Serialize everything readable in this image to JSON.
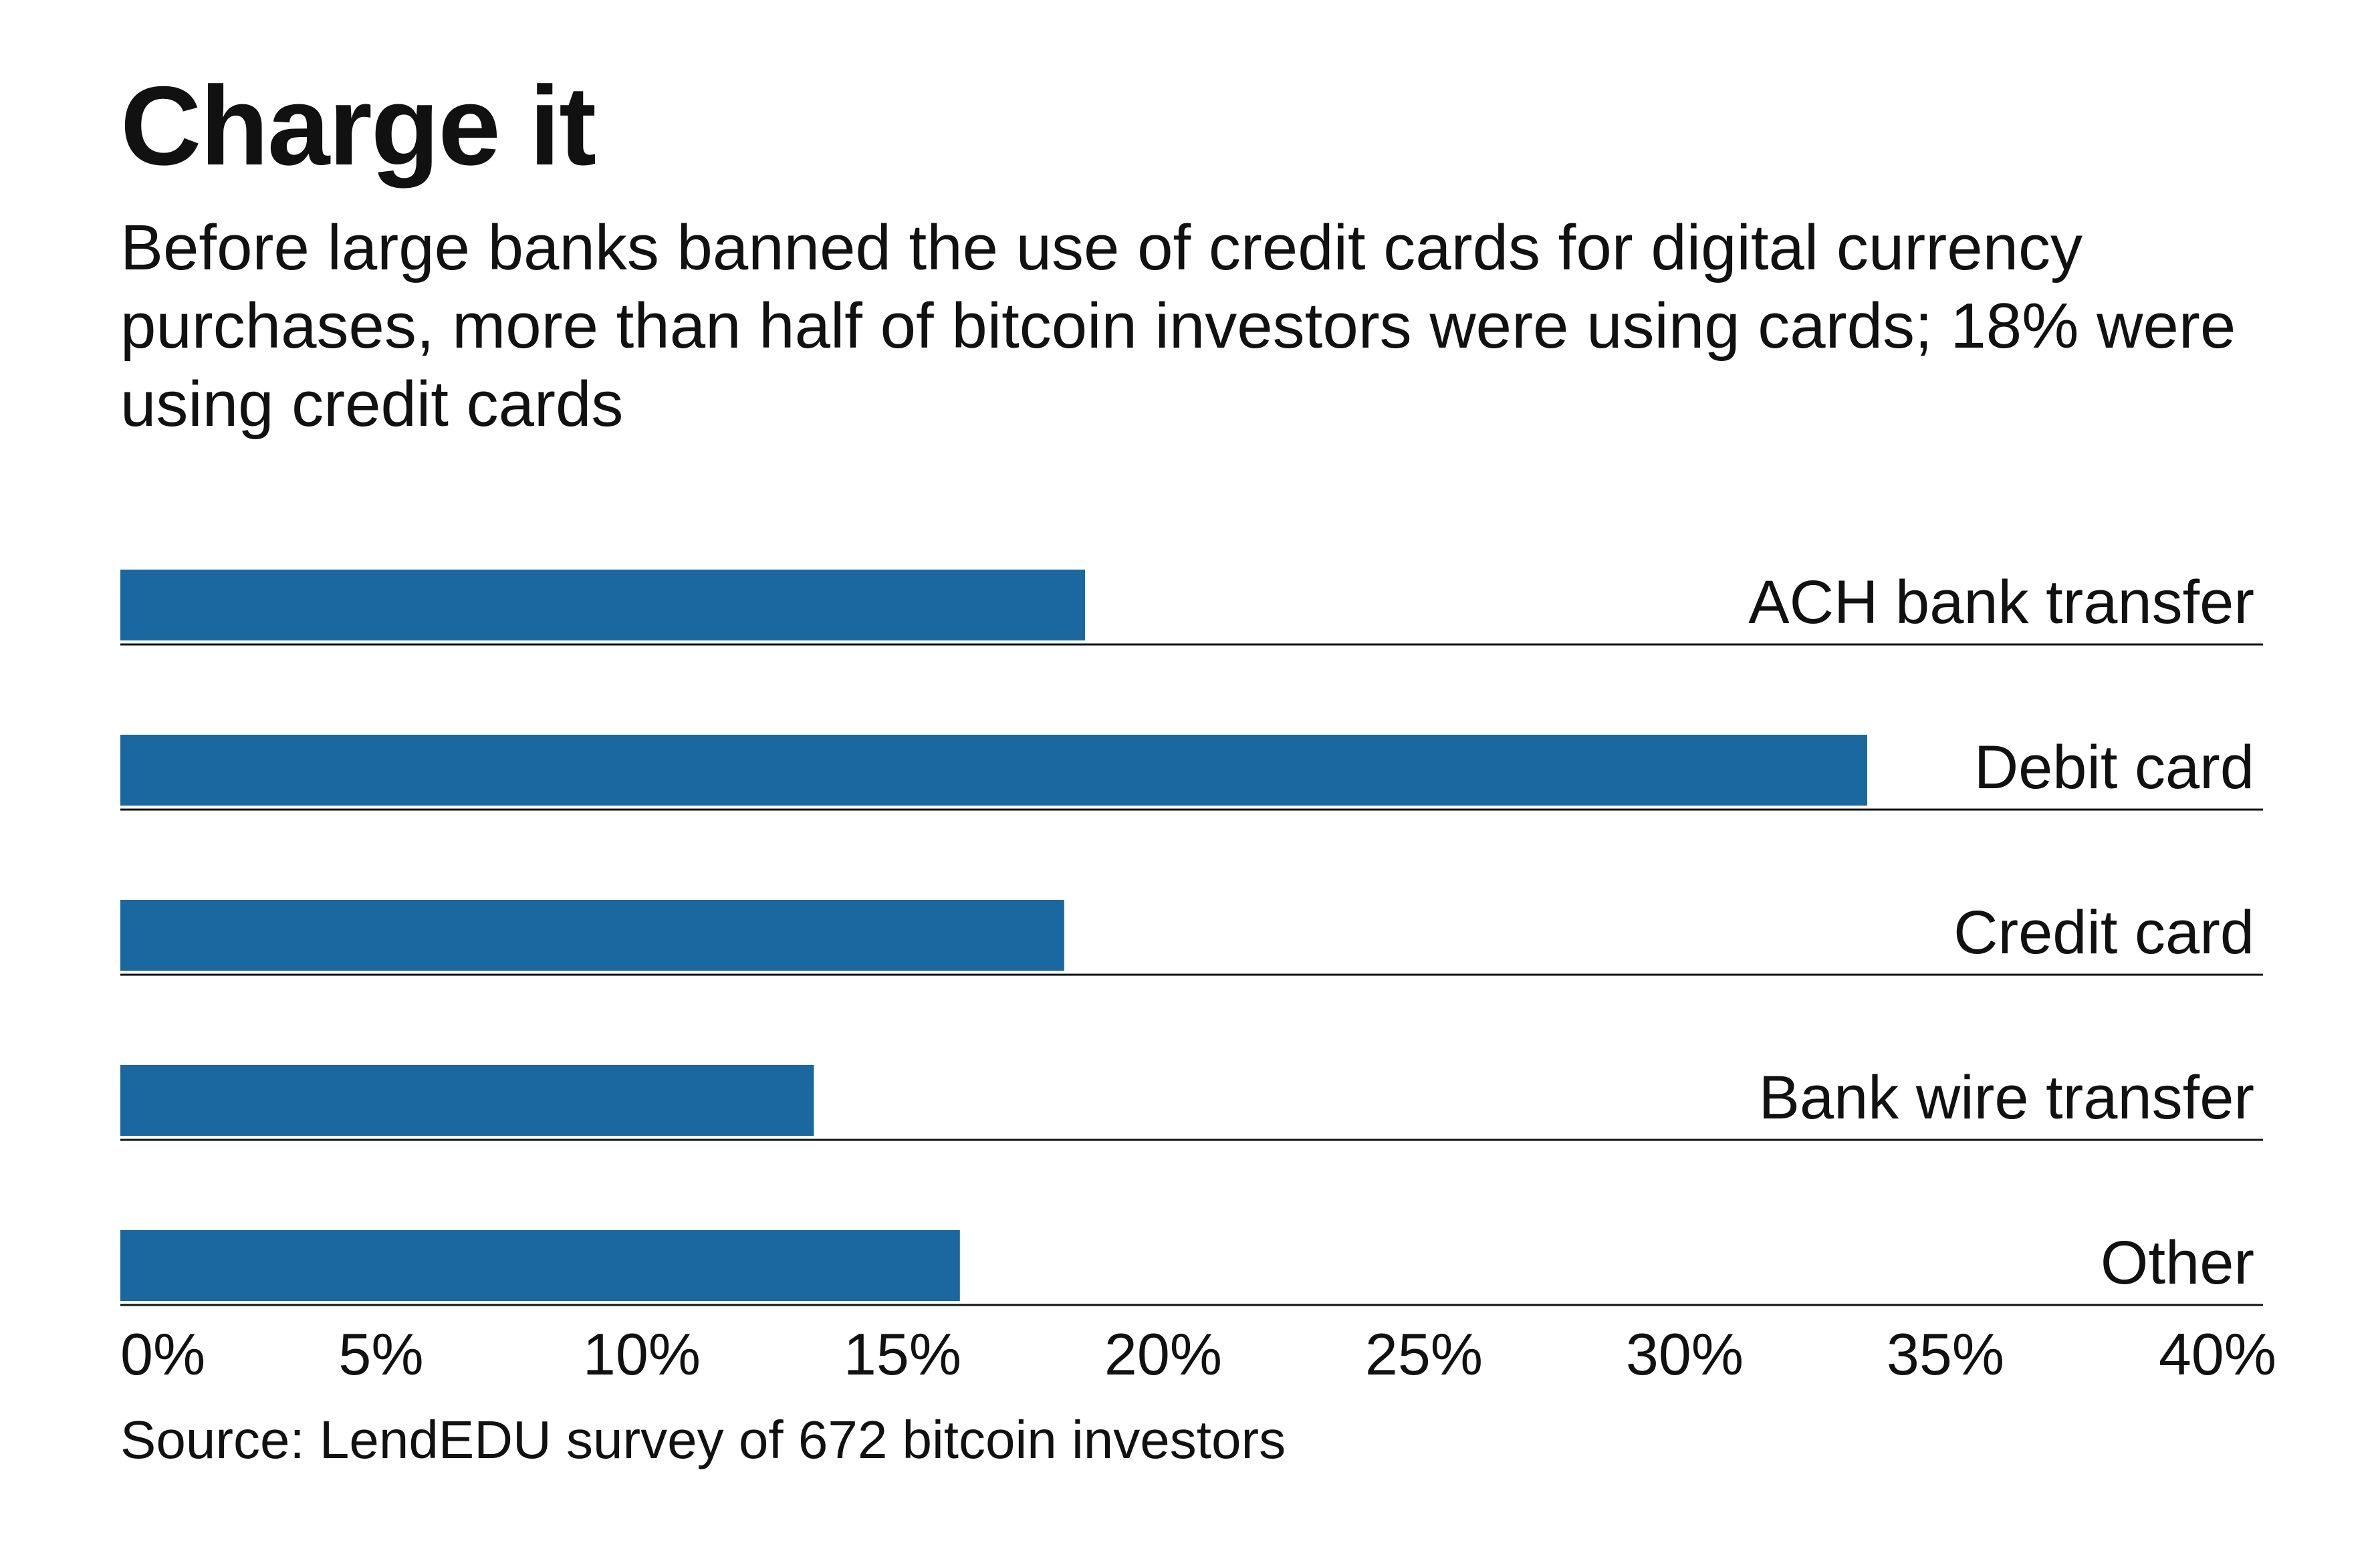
{
  "header": {
    "title": "Charge it",
    "subtitle": "Before large banks banned the use of credit cards for digital currency purchases, more than half of bitcoin investors were using cards; 18% were using credit cards"
  },
  "footer": {
    "source": "Source: LendEDU survey of 672 bitcoin investors"
  },
  "chart_data": {
    "type": "bar",
    "orientation": "horizontal",
    "categories": [
      "ACH bank transfer",
      "Debit card",
      "Credit card",
      "Bank wire transfer",
      "Other"
    ],
    "values": [
      18.5,
      33.5,
      18.1,
      13.3,
      16.1
    ],
    "xlim": [
      0,
      40
    ],
    "x_ticks": [
      0,
      5,
      10,
      15,
      20,
      25,
      30,
      35,
      40
    ],
    "x_tick_labels": [
      "0%",
      "5%",
      "10%",
      "15%",
      "20%",
      "25%",
      "30%",
      "35%",
      "40%"
    ],
    "category_label_position": "right, above baseline",
    "grid": false,
    "legend": "none",
    "colors": {
      "bar": "#1b68a0",
      "rule": "#111111",
      "text": "#111111"
    }
  }
}
